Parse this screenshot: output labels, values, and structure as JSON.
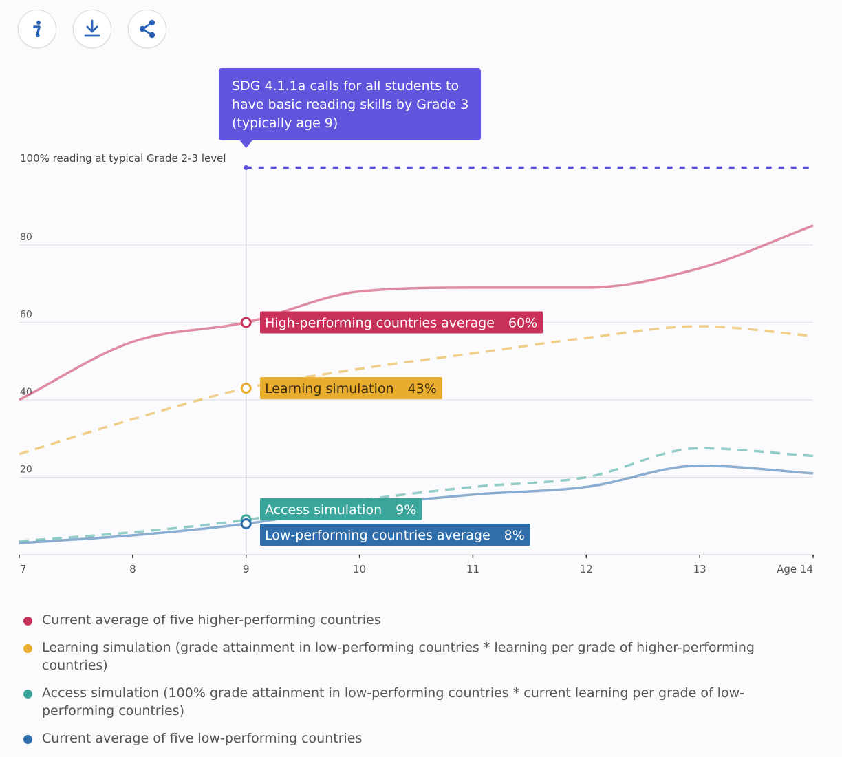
{
  "toolbar": {
    "info_icon": "info-icon",
    "download_icon": "download-icon",
    "share_icon": "share-icon"
  },
  "annotation": {
    "tooltip_lines": [
      "SDG 4.1.1a calls for all students to",
      "have basic reading skills by Grade 3",
      "(typically age 9)"
    ],
    "target_label": "100% reading at typical Grade 2-3 level",
    "target_value": 100,
    "highlight_x": 9
  },
  "chart_data": {
    "type": "line",
    "x": [
      7,
      8,
      9,
      10,
      11,
      12,
      13,
      14
    ],
    "xticks": [
      "7",
      "8",
      "9",
      "10",
      "11",
      "12",
      "13",
      "Age 14"
    ],
    "ylim": [
      0,
      100
    ],
    "yticks": [
      20,
      40,
      60,
      80
    ],
    "grid": true,
    "legend_position": "bottom",
    "series": [
      {
        "name": "Current average of five higher-performing countries",
        "callout": "High-performing countries average",
        "callout_value": "60%",
        "color": "#c8325a",
        "dashed": false,
        "values": [
          40,
          55,
          60,
          68,
          69,
          69,
          74,
          85
        ]
      },
      {
        "name": "Learning simulation (grade attainment in low-performing countries * learning per grade of higher-performing countries)",
        "callout": "Learning simulation",
        "callout_value": "43%",
        "color": "#e8ac2e",
        "dashed": true,
        "values": [
          26,
          35,
          43,
          48,
          52,
          56,
          59,
          56.5
        ]
      },
      {
        "name": "Access simulation (100% grade attainment in low-performing countries * current learning per grade of low-performing countries)",
        "callout": "Access simulation",
        "callout_value": "9%",
        "color": "#3aa59b",
        "dashed": true,
        "values": [
          3.5,
          5.8,
          9,
          14,
          17.5,
          20,
          27.5,
          25.5
        ]
      },
      {
        "name": "Current average of five low-performing countries",
        "callout": "Low-performing countries average",
        "callout_value": "8%",
        "color": "#2f6eab",
        "dashed": false,
        "values": [
          3,
          5,
          8,
          12.5,
          15.5,
          17.5,
          23,
          21
        ]
      }
    ]
  }
}
